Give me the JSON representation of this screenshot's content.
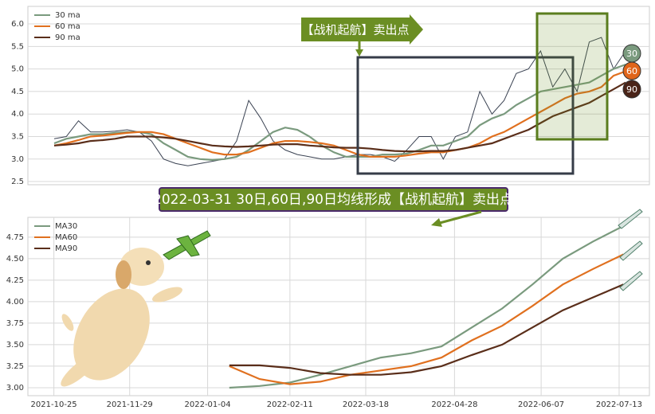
{
  "chart_data": [
    {
      "type": "line",
      "annotation": "【战机起航】卖出点",
      "end_labels": [
        "30",
        "60",
        "90"
      ],
      "xlim": [
        -2.16,
        48.95
      ],
      "ylim": [
        2.43,
        6.39
      ],
      "yticks": [
        2.5,
        {
          "value": 3,
          "label": "3.0"
        },
        3.5,
        {
          "value": 4,
          "label": "4.0"
        },
        4.5,
        {
          "value": 5,
          "label": "5.0"
        },
        5.5,
        {
          "value": 6,
          "label": "6.0"
        }
      ],
      "grid": true,
      "legend": "upper left",
      "series": [
        {
          "color": "#3a4252",
          "values": [
            3.45,
            3.5,
            3.85,
            3.6,
            3.6,
            3.62,
            3.65,
            3.6,
            3.4,
            3.0,
            2.9,
            2.85,
            2.9,
            2.95,
            3.0,
            3.4,
            4.3,
            3.9,
            3.4,
            3.2,
            3.1,
            3.05,
            3.0,
            3.0,
            3.05,
            3.1,
            3.1,
            3.05,
            2.95,
            3.2,
            3.5,
            3.5,
            3.0,
            3.5,
            3.6,
            4.5,
            4.0,
            4.3,
            4.9,
            5.0,
            5.4,
            4.6,
            5.0,
            4.5,
            5.6,
            5.7,
            5.0,
            5.4
          ]
        },
        {
          "name": "30 ma",
          "color": "#7a9a7e",
          "values": [
            3.35,
            3.45,
            3.5,
            3.55,
            3.55,
            3.58,
            3.6,
            3.6,
            3.55,
            3.35,
            3.2,
            3.05,
            3.0,
            2.98,
            3.0,
            3.05,
            3.2,
            3.4,
            3.6,
            3.7,
            3.65,
            3.5,
            3.3,
            3.15,
            3.05,
            3.05,
            3.05,
            3.1,
            3.1,
            3.12,
            3.2,
            3.3,
            3.3,
            3.4,
            3.5,
            3.75,
            3.9,
            4.0,
            4.2,
            4.35,
            4.5,
            4.55,
            4.6,
            4.65,
            4.7,
            4.85,
            5.0,
            5.1
          ]
        },
        {
          "name": "60 ma",
          "color": "#e0701f",
          "values": [
            3.3,
            3.35,
            3.42,
            3.5,
            3.52,
            3.55,
            3.58,
            3.6,
            3.6,
            3.55,
            3.45,
            3.35,
            3.25,
            3.15,
            3.1,
            3.1,
            3.15,
            3.25,
            3.35,
            3.4,
            3.4,
            3.38,
            3.35,
            3.3,
            3.2,
            3.1,
            3.05,
            3.05,
            3.05,
            3.08,
            3.12,
            3.15,
            3.15,
            3.2,
            3.25,
            3.35,
            3.5,
            3.6,
            3.75,
            3.9,
            4.05,
            4.2,
            4.35,
            4.45,
            4.5,
            4.6,
            4.85,
            4.95
          ]
        },
        {
          "name": "90 ma",
          "color": "#5a2e1a",
          "values": [
            3.3,
            3.32,
            3.35,
            3.4,
            3.42,
            3.45,
            3.5,
            3.5,
            3.5,
            3.48,
            3.45,
            3.4,
            3.35,
            3.3,
            3.28,
            3.27,
            3.28,
            3.3,
            3.32,
            3.33,
            3.33,
            3.3,
            3.28,
            3.26,
            3.25,
            3.25,
            3.23,
            3.2,
            3.18,
            3.17,
            3.17,
            3.18,
            3.18,
            3.2,
            3.25,
            3.3,
            3.35,
            3.45,
            3.55,
            3.65,
            3.8,
            3.95,
            4.05,
            4.15,
            4.25,
            4.4,
            4.55,
            4.7
          ]
        }
      ]
    },
    {
      "type": "line",
      "title": "2022-03-31 30日,60日,90日均线形成【战机起航】卖出点",
      "x": [
        "2022-01-14",
        "2022-01-28",
        "2022-02-11",
        "2022-02-25",
        "2022-03-11",
        "2022-03-25",
        "2022-04-08",
        "2022-04-22",
        "2022-05-06",
        "2022-05-20",
        "2022-06-03",
        "2022-06-17",
        "2022-07-01",
        "2022-07-15"
      ],
      "xlim": [
        "2021-10-13",
        "2022-07-27"
      ],
      "xticks": [
        "2021-10-25",
        "2021-11-29",
        "2022-01-04",
        "2022-02-11",
        "2022-03-18",
        "2022-04-28",
        "2022-06-07",
        "2022-07-13"
      ],
      "ylim": [
        2.907,
        4.98
      ],
      "yticks": [
        {
          "value": 3,
          "label": "3.00"
        },
        3.25,
        {
          "value": 3.5,
          "label": "3.50"
        },
        3.75,
        {
          "value": 4,
          "label": "4.00"
        },
        4.25,
        {
          "value": 4.5,
          "label": "4.50"
        },
        4.75
      ],
      "grid": true,
      "legend": "upper left",
      "series": [
        {
          "name": "MA30",
          "color": "#7a9a7e",
          "values": [
            3.0,
            3.02,
            3.06,
            3.15,
            3.25,
            3.35,
            3.4,
            3.48,
            3.7,
            3.92,
            4.2,
            4.5,
            4.7,
            4.88
          ]
        },
        {
          "name": "MA60",
          "color": "#e0701f",
          "values": [
            3.25,
            3.1,
            3.04,
            3.07,
            3.15,
            3.2,
            3.25,
            3.35,
            3.55,
            3.72,
            3.95,
            4.2,
            4.38,
            4.55
          ]
        },
        {
          "name": "MA90",
          "color": "#5a2e1a",
          "values": [
            3.26,
            3.26,
            3.23,
            3.17,
            3.15,
            3.15,
            3.18,
            3.25,
            3.38,
            3.5,
            3.7,
            3.9,
            4.05,
            4.2
          ]
        }
      ]
    }
  ]
}
